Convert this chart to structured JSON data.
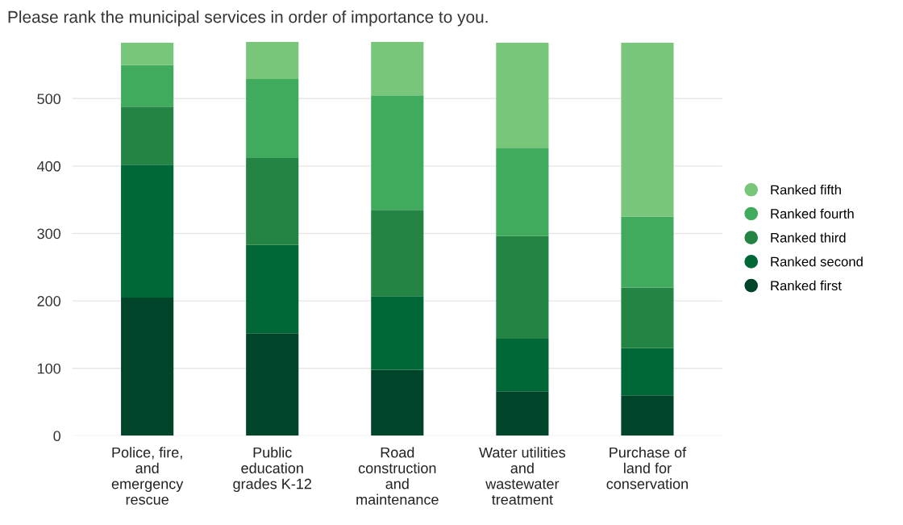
{
  "chart_data": {
    "type": "bar",
    "stacked": true,
    "title": "Please rank the municipal services in order of importance to you.",
    "categories": [
      "Police, fire,\nand\nemergency\nrescue",
      "Public\neducation\ngrades K-12",
      "Road\nconstruction\nand\nmaintenance",
      "Water utilities\nand\nwastewater\ntreatment",
      "Purchase of\nland for\nconservation"
    ],
    "series": [
      {
        "name": "Ranked first",
        "color": "#00442a",
        "values": [
          205,
          152,
          98,
          66,
          60
        ]
      },
      {
        "name": "Ranked second",
        "color": "#006837",
        "values": [
          197,
          131,
          109,
          78,
          70
        ]
      },
      {
        "name": "Ranked third",
        "color": "#238443",
        "values": [
          86,
          129,
          128,
          152,
          90
        ]
      },
      {
        "name": "Ranked fourth",
        "color": "#41ab5d",
        "values": [
          62,
          117,
          170,
          131,
          105
        ]
      },
      {
        "name": "Ranked fifth",
        "color": "#78c679",
        "values": [
          33,
          55,
          80,
          156,
          258
        ]
      }
    ],
    "ylim": [
      0,
      584
    ],
    "yticks": [
      0,
      100,
      200,
      300,
      400,
      500
    ],
    "grid": "y",
    "legend": "right"
  }
}
